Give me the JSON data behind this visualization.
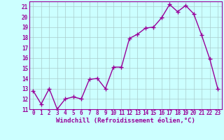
{
  "x": [
    0,
    1,
    2,
    3,
    4,
    5,
    6,
    7,
    8,
    9,
    10,
    11,
    12,
    13,
    14,
    15,
    16,
    17,
    18,
    19,
    20,
    21,
    22,
    23
  ],
  "y": [
    12.8,
    11.5,
    13.0,
    11.0,
    12.0,
    12.2,
    12.0,
    13.9,
    14.0,
    13.0,
    15.1,
    15.1,
    17.9,
    18.3,
    18.9,
    19.0,
    19.9,
    21.2,
    20.5,
    21.1,
    20.3,
    18.2,
    15.9,
    13.0
  ],
  "color": "#990099",
  "bg_color": "#ccffff",
  "grid_color": "#aacccc",
  "xlabel": "Windchill (Refroidissement éolien,°C)",
  "ylim": [
    11,
    21.5
  ],
  "xlim": [
    -0.5,
    23.5
  ],
  "yticks": [
    11,
    12,
    13,
    14,
    15,
    16,
    17,
    18,
    19,
    20,
    21
  ],
  "xticks": [
    0,
    1,
    2,
    3,
    4,
    5,
    6,
    7,
    8,
    9,
    10,
    11,
    12,
    13,
    14,
    15,
    16,
    17,
    18,
    19,
    20,
    21,
    22,
    23
  ],
  "marker": "+",
  "markersize": 4,
  "markeredgewidth": 1.0,
  "linewidth": 1.0,
  "tick_fontsize": 5.5,
  "xlabel_fontsize": 6.5
}
